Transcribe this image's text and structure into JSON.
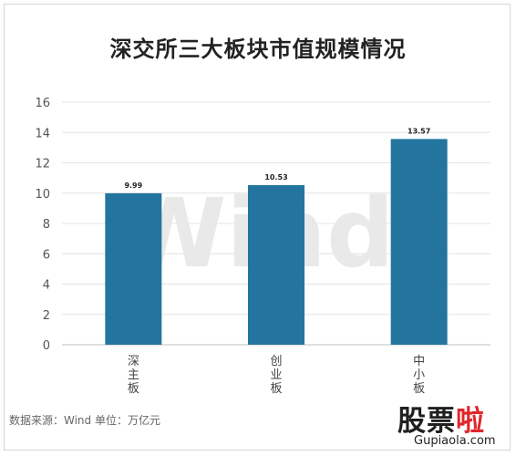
{
  "chart_data": {
    "type": "bar",
    "title": "深交所三大板块市值规模情况",
    "categories": [
      "深主板",
      "创业板",
      "中小板"
    ],
    "values": [
      9.99,
      10.53,
      13.57
    ],
    "value_labels": [
      "9.99",
      "10.53",
      "13.57"
    ],
    "ylim": [
      0,
      16
    ],
    "yticks": [
      0,
      2,
      4,
      6,
      8,
      10,
      12,
      14,
      16
    ],
    "grid": true,
    "legend": "none",
    "bar_color": "#23759f",
    "watermark": "Wind",
    "source": "数据来源：Wind    单位：万亿元"
  },
  "stamp": {
    "main": "股票",
    "accent": "啦",
    "site": "Gupiaola.com"
  }
}
